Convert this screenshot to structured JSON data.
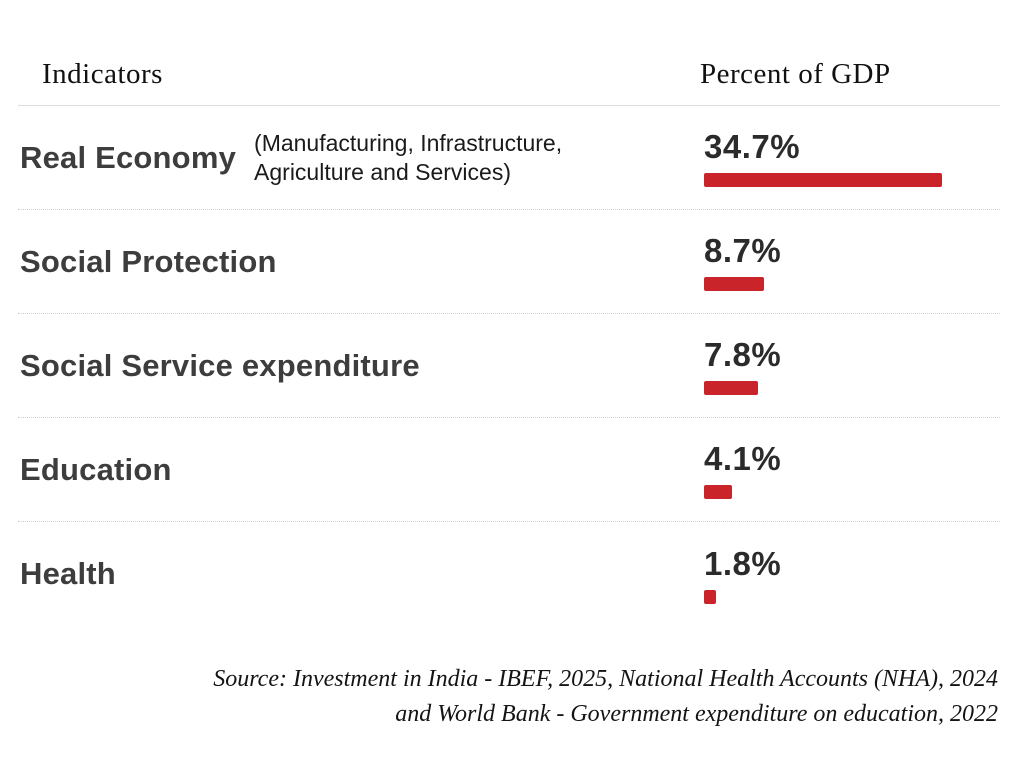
{
  "header": {
    "indicators_label": "Indicators",
    "percent_label": "Percent of GDP"
  },
  "rows": [
    {
      "label": "Real Economy",
      "sublabel": "(Manufacturing, Infrastructure, Agriculture and Services)",
      "value_text": "34.7%",
      "value": 34.7
    },
    {
      "label": "Social Protection",
      "sublabel": "",
      "value_text": "8.7%",
      "value": 8.7
    },
    {
      "label": "Social Service expenditure",
      "sublabel": "",
      "value_text": "7.8%",
      "value": 7.8
    },
    {
      "label": "Education",
      "sublabel": "",
      "value_text": "4.1%",
      "value": 4.1
    },
    {
      "label": "Health",
      "sublabel": "",
      "value_text": "1.8%",
      "value": 1.8
    }
  ],
  "source": {
    "line1": "Source: Investment in India - IBEF, 2025, National Health Accounts (NHA), 2024",
    "line2": "and World Bank - Government expenditure on education, 2022"
  },
  "colors": {
    "bar": "#c9242a",
    "label": "#3d3d3d",
    "value": "#2b2b2b"
  },
  "chart_data": {
    "type": "bar",
    "orientation": "horizontal",
    "title": "",
    "xlabel": "Indicators",
    "ylabel": "Percent of GDP",
    "categories": [
      "Real Economy (Manufacturing, Infrastructure, Agriculture and Services)",
      "Social Protection",
      "Social Service expenditure",
      "Education",
      "Health"
    ],
    "values": [
      34.7,
      8.7,
      7.8,
      4.1,
      1.8
    ],
    "value_labels": [
      "34.7%",
      "8.7%",
      "7.8%",
      "4.1%",
      "1.8%"
    ],
    "xlim": [
      0,
      36
    ],
    "grid": false,
    "legend": false,
    "bar_color": "#c9242a",
    "annotations": [
      "Source: Investment in India - IBEF, 2025, National Health Accounts (NHA), 2024 and World Bank - Government expenditure on education, 2022"
    ]
  }
}
